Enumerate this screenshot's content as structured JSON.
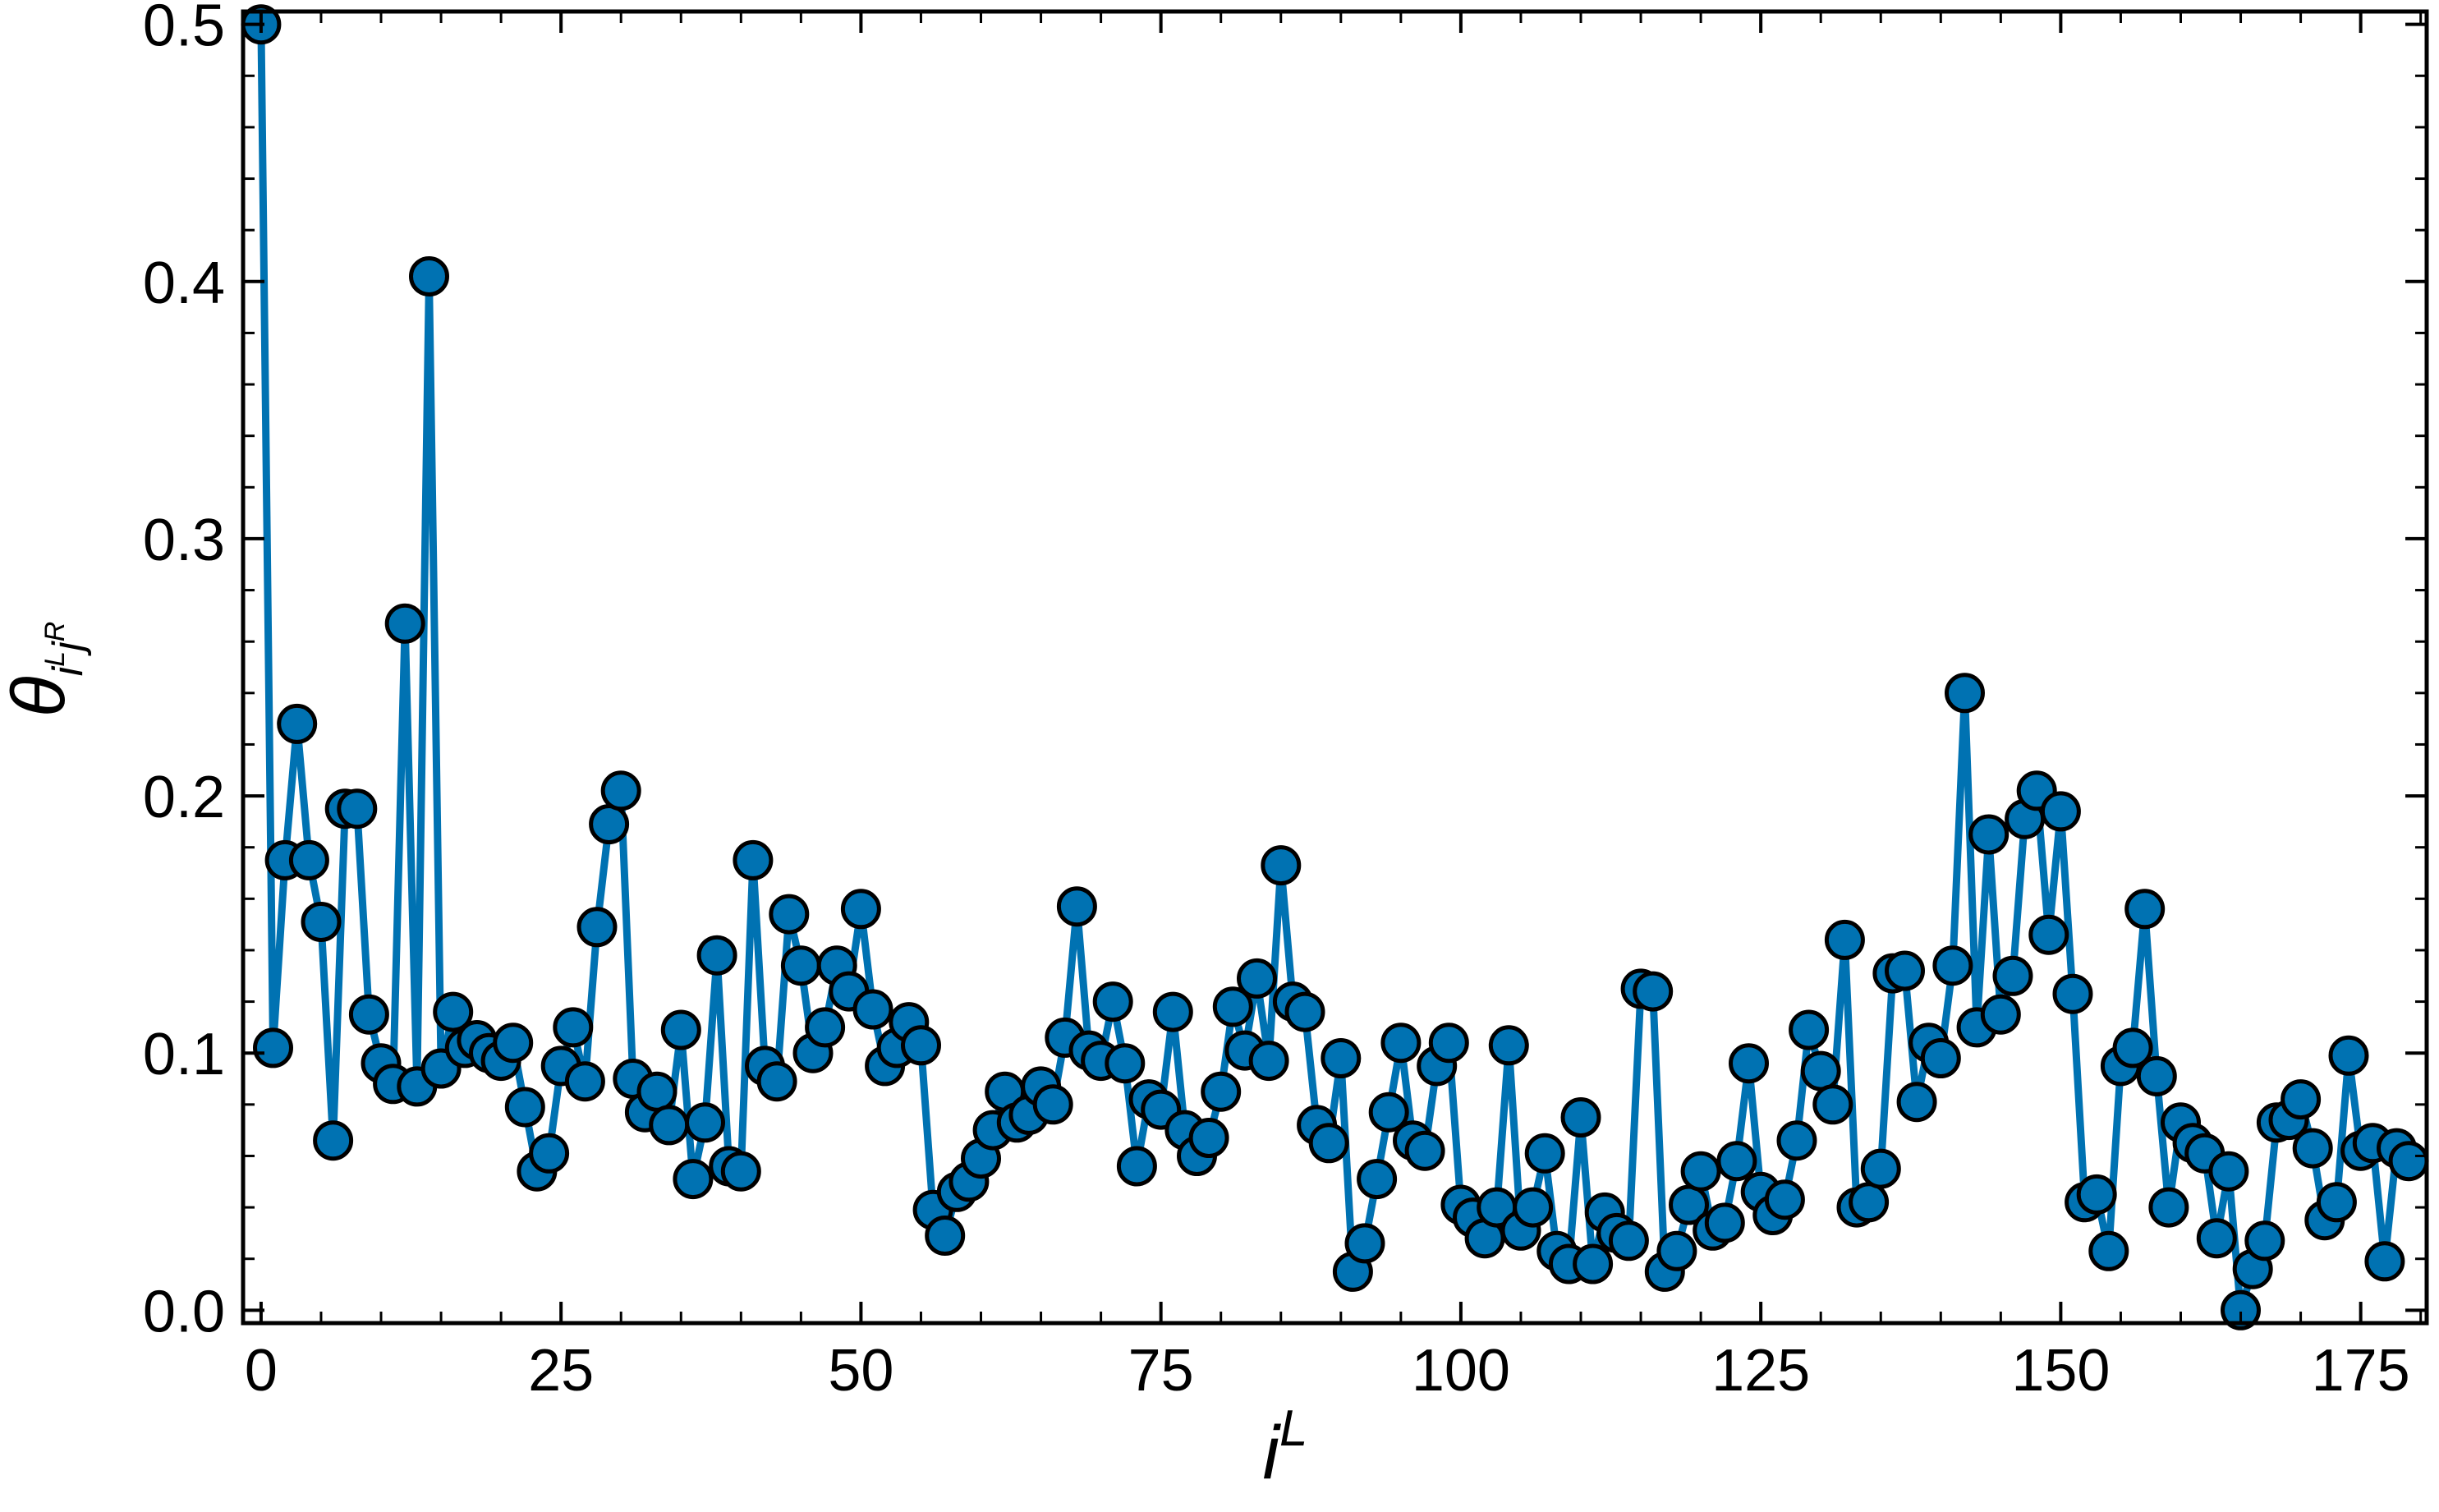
{
  "chart_data": {
    "type": "line",
    "xlabel": "i^L",
    "ylabel": "θ_{i^L j^R}",
    "xlim": [
      -1.5,
      180.5
    ],
    "ylim": [
      -0.005,
      0.505
    ],
    "xticks": [
      0,
      25,
      50,
      75,
      100,
      125,
      150,
      175
    ],
    "yticks": [
      0.0,
      0.1,
      0.2,
      0.3,
      0.4,
      0.5
    ],
    "xtick_labels": [
      "0",
      "25",
      "50",
      "75",
      "100",
      "125",
      "150",
      "175"
    ],
    "ytick_labels": [
      "0.0",
      "0.1",
      "0.2",
      "0.3",
      "0.4",
      "0.5"
    ],
    "grid": false,
    "legend": "none",
    "colors": {
      "line": "#0072b2",
      "marker_fill": "#0072b2",
      "marker_edge": "#000000"
    },
    "series": [
      {
        "x": [
          0,
          1,
          2,
          3,
          4,
          5,
          6,
          7,
          8,
          9,
          10,
          11,
          12,
          13,
          14,
          15,
          16,
          17,
          18,
          19,
          20,
          21,
          22,
          23,
          24,
          25,
          26,
          27,
          28,
          29,
          30,
          31,
          32,
          33,
          34,
          35,
          36,
          37,
          38,
          39,
          40,
          41,
          42,
          43,
          44,
          45,
          46,
          47,
          48,
          49,
          50,
          51,
          52,
          53,
          54,
          55,
          56,
          57,
          58,
          59,
          60,
          61,
          62,
          63,
          64,
          65,
          66,
          67,
          68,
          69,
          70,
          71,
          72,
          73,
          74,
          75,
          76,
          77,
          78,
          79,
          80,
          81,
          82,
          83,
          84,
          85,
          86,
          87,
          88,
          89,
          90,
          91,
          92,
          93,
          94,
          95,
          96,
          97,
          98,
          99,
          100,
          101,
          102,
          103,
          104,
          105,
          106,
          107,
          108,
          109,
          110,
          111,
          112,
          113,
          114,
          115,
          116,
          117,
          118,
          119,
          120,
          121,
          122,
          123,
          124,
          125,
          126,
          127,
          128,
          129,
          130,
          131,
          132,
          133,
          134,
          135,
          136,
          137,
          138,
          139,
          140,
          141,
          142,
          143,
          144,
          145,
          146,
          147,
          148,
          149,
          150,
          151,
          152,
          153,
          154,
          155,
          156,
          157,
          158,
          159,
          160,
          161,
          162,
          163,
          164,
          165,
          166,
          167,
          168,
          169,
          170,
          171,
          172,
          173,
          174,
          175,
          176,
          177,
          178,
          179
        ],
        "y": [
          0.5,
          0.102,
          0.175,
          0.228,
          0.175,
          0.151,
          0.066,
          0.195,
          0.195,
          0.115,
          0.096,
          0.088,
          0.267,
          0.087,
          0.402,
          0.094,
          0.116,
          0.102,
          0.105,
          0.1,
          0.097,
          0.104,
          0.079,
          0.054,
          0.061,
          0.095,
          0.11,
          0.089,
          0.149,
          0.189,
          0.202,
          0.09,
          0.077,
          0.085,
          0.072,
          0.109,
          0.051,
          0.073,
          0.138,
          0.056,
          0.054,
          0.175,
          0.095,
          0.089,
          0.154,
          0.134,
          0.1,
          0.11,
          0.134,
          0.124,
          0.156,
          0.117,
          0.095,
          0.102,
          0.112,
          0.103,
          0.039,
          0.029,
          0.046,
          0.05,
          0.059,
          0.07,
          0.085,
          0.073,
          0.076,
          0.087,
          0.08,
          0.106,
          0.157,
          0.101,
          0.097,
          0.12,
          0.096,
          0.056,
          0.082,
          0.078,
          0.116,
          0.07,
          0.06,
          0.067,
          0.085,
          0.118,
          0.101,
          0.129,
          0.097,
          0.173,
          0.12,
          0.116,
          0.072,
          0.065,
          0.098,
          0.015,
          0.026,
          0.051,
          0.077,
          0.104,
          0.066,
          0.062,
          0.095,
          0.104,
          0.041,
          0.036,
          0.028,
          0.04,
          0.103,
          0.031,
          0.04,
          0.061,
          0.023,
          0.018,
          0.075,
          0.018,
          0.038,
          0.03,
          0.027,
          0.125,
          0.124,
          0.015,
          0.023,
          0.041,
          0.054,
          0.031,
          0.034,
          0.058,
          0.096,
          0.046,
          0.037,
          0.043,
          0.066,
          0.109,
          0.093,
          0.08,
          0.144,
          0.04,
          0.042,
          0.055,
          0.131,
          0.132,
          0.081,
          0.104,
          0.098,
          0.134,
          0.24,
          0.11,
          0.185,
          0.115,
          0.13,
          0.191,
          0.202,
          0.146,
          0.194,
          0.123,
          0.042,
          0.045,
          0.023,
          0.095,
          0.102,
          0.156,
          0.091,
          0.04,
          0.073,
          0.065,
          0.061,
          0.028,
          0.054,
          0.0,
          0.016,
          0.027,
          0.073,
          0.074,
          0.082,
          0.063,
          0.035,
          0.042,
          0.099,
          0.062,
          0.065,
          0.019,
          0.063,
          0.058
        ]
      }
    ]
  }
}
